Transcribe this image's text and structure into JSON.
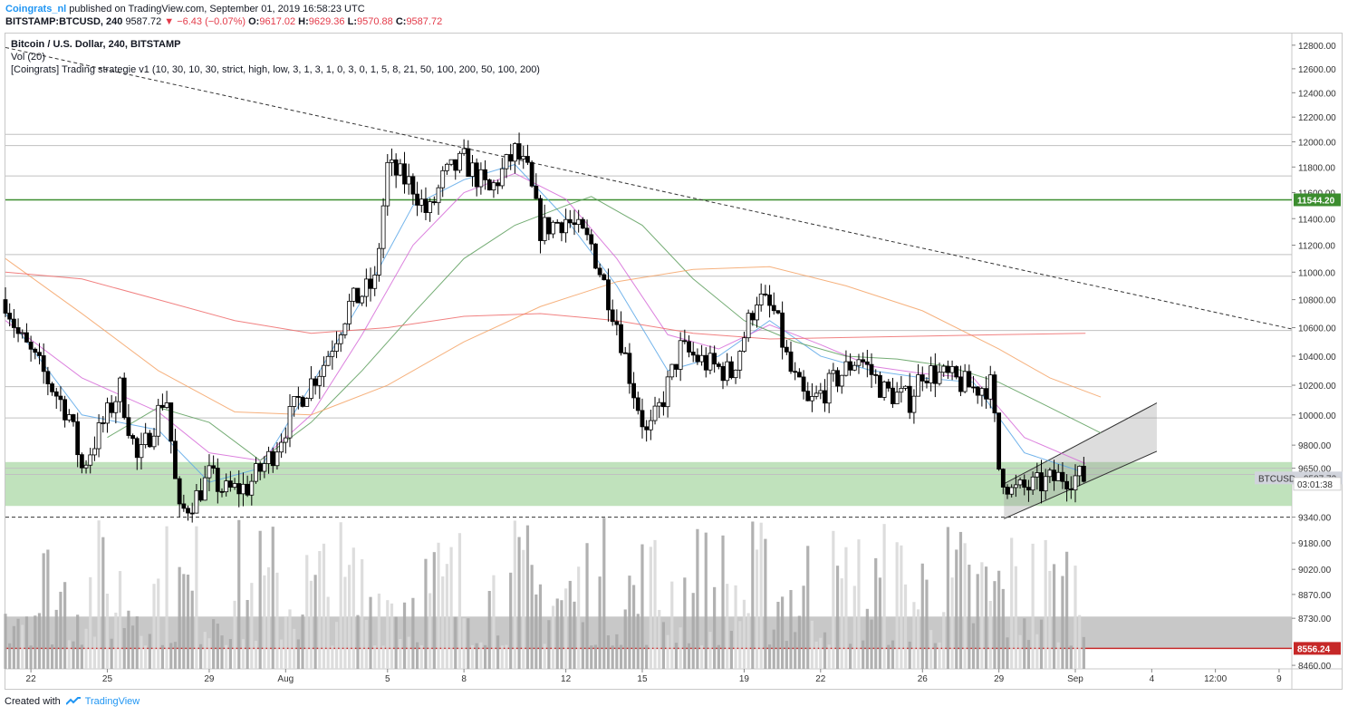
{
  "header": {
    "author": "Coingrats_nl",
    "published_text": "published on TradingView.com, September 01, 2019 16:58:23 UTC",
    "ticker": "BITSTAMP:BTCUSD, 240",
    "last": "9587.72",
    "change": "▼ −6.43 (−0.07%)",
    "o_label": "O:",
    "o": "9617.02",
    "h_label": "H:",
    "h": "9629.36",
    "l_label": "L:",
    "l": "9570.88",
    "c_label": "C:",
    "c": "9587.72"
  },
  "legend": {
    "title": "Bitcoin / U.S. Dollar, 240, BITSTAMP",
    "volume": "Vol (20)",
    "indicator": "[Coingrats] Trading strategie v1 (10, 30, 10, 30, strict, high, low, 3, 1, 3, 1, 0, 3, 0, 1, 5, 8, 21, 50, 100, 200, 50, 100, 200)"
  },
  "footer": {
    "created_with": "Created with",
    "brand": "TradingView"
  },
  "colors": {
    "up": "#ffffff",
    "down": "#000000",
    "zone_green": "#a5d6a0",
    "line_green": "#3c8d2f",
    "red_level": "#c62828",
    "ema_blue": "#5aa7e8",
    "ema_pink": "#d66bd8",
    "ema_green": "#5c9e5c",
    "ema_orange": "#f4a366",
    "ema_red": "#ef6b6b"
  },
  "chart_data": {
    "type": "candlestick",
    "symbol": "BTCUSD",
    "interval": "240",
    "y_scale": "log",
    "ylim": [
      8440,
      12900
    ],
    "y_ticks": [
      12800,
      12600,
      12400,
      12200,
      12000,
      11800,
      11600,
      11400,
      11200,
      11000,
      10800,
      10600,
      10400,
      10200,
      10000,
      9800,
      9650,
      9340,
      9180,
      9020,
      8870,
      8730,
      8460
    ],
    "y_tick_labels": [
      "12800.00",
      "12600.00",
      "12400.00",
      "12200.00",
      "12000.00",
      "11800.00",
      "11600.00",
      "11400.00",
      "11200.00",
      "11000.00",
      "10800.00",
      "10600.00",
      "10400.00",
      "10200.00",
      "10000.00",
      "9800.00",
      "9650.00",
      "9340.00",
      "9180.00",
      "9020.00",
      "8870.00",
      "8730.00",
      "8460.00"
    ],
    "x_labels": [
      "22",
      "25",
      "29",
      "Aug",
      "5",
      "8",
      "12",
      "15",
      "19",
      "22",
      "26",
      "29",
      "Sep",
      "4",
      "12:00",
      "9"
    ],
    "x_label_days": [
      22,
      25,
      29,
      32,
      36,
      39,
      43,
      46,
      50,
      53,
      57,
      60,
      63,
      66,
      68.5,
      71
    ],
    "x_start_day": 21.0,
    "x_end_day": 71.5,
    "badges": [
      {
        "label": "11544.20",
        "price": 11544.2,
        "color": "#3c8d2f"
      },
      {
        "label": "BTCUSD",
        "value": "9587.72",
        "price": 9587.72,
        "color": "#d1d4dc"
      },
      {
        "label": "03:01:38",
        "price": 9550,
        "color": "#ffffff"
      },
      {
        "label": "8556.24",
        "price": 8556.24,
        "color": "#c62828"
      }
    ],
    "levels": {
      "green_resistance": 11544.2,
      "dashed_support": 9340,
      "red_support": 8556.24,
      "horizontal_lines": [
        12060,
        11970,
        11730,
        11130,
        10970,
        10580,
        10190,
        9980,
        9650,
        9610
      ]
    },
    "zones": [
      {
        "from": 9410,
        "to": 9690,
        "color": "green"
      },
      {
        "from": 8560,
        "to": 8740,
        "color": "gray"
      }
    ],
    "trendline": {
      "from": {
        "day": 21.0,
        "price": 12780
      },
      "to": {
        "day": 71.5,
        "price": 10590
      }
    },
    "channel": {
      "upper": [
        {
          "day": 60.2,
          "price": 9550
        },
        {
          "day": 66.2,
          "price": 10080
        }
      ],
      "lower": [
        {
          "day": 60.2,
          "price": 9330
        },
        {
          "day": 66.2,
          "price": 9760
        }
      ]
    },
    "anchors": [
      {
        "day": 21.0,
        "price": 10800
      },
      {
        "day": 21.5,
        "price": 10550
      },
      {
        "day": 22.5,
        "price": 10280
      },
      {
        "day": 23.5,
        "price": 10000
      },
      {
        "day": 24.0,
        "price": 9650
      },
      {
        "day": 24.8,
        "price": 9930
      },
      {
        "day": 25.5,
        "price": 10180
      },
      {
        "day": 26.2,
        "price": 9680
      },
      {
        "day": 27.0,
        "price": 10020
      },
      {
        "day": 27.3,
        "price": 10160
      },
      {
        "day": 27.8,
        "price": 9350
      },
      {
        "day": 28.5,
        "price": 9470
      },
      {
        "day": 29.0,
        "price": 9600
      },
      {
        "day": 29.6,
        "price": 9500
      },
      {
        "day": 30.5,
        "price": 9530
      },
      {
        "day": 31.5,
        "price": 9750
      },
      {
        "day": 32.5,
        "price": 10100
      },
      {
        "day": 33.5,
        "price": 10350
      },
      {
        "day": 34.5,
        "price": 10760
      },
      {
        "day": 35.5,
        "price": 10920
      },
      {
        "day": 36.0,
        "price": 11800
      },
      {
        "day": 37.0,
        "price": 11650
      },
      {
        "day": 37.6,
        "price": 11420
      },
      {
        "day": 38.2,
        "price": 11720
      },
      {
        "day": 39.0,
        "price": 11850
      },
      {
        "day": 40.0,
        "price": 11600
      },
      {
        "day": 41.0,
        "price": 11920
      },
      {
        "day": 41.5,
        "price": 11750
      },
      {
        "day": 42.0,
        "price": 11320
      },
      {
        "day": 43.0,
        "price": 11400
      },
      {
        "day": 44.0,
        "price": 11200
      },
      {
        "day": 45.0,
        "price": 10640
      },
      {
        "day": 45.6,
        "price": 10200
      },
      {
        "day": 46.2,
        "price": 9850
      },
      {
        "day": 46.8,
        "price": 10100
      },
      {
        "day": 47.5,
        "price": 10450
      },
      {
        "day": 48.5,
        "price": 10350
      },
      {
        "day": 49.5,
        "price": 10280
      },
      {
        "day": 50.5,
        "price": 10820
      },
      {
        "day": 51.2,
        "price": 10700
      },
      {
        "day": 51.8,
        "price": 10300
      },
      {
        "day": 52.5,
        "price": 10060
      },
      {
        "day": 53.5,
        "price": 10220
      },
      {
        "day": 54.5,
        "price": 10400
      },
      {
        "day": 55.5,
        "price": 10160
      },
      {
        "day": 56.5,
        "price": 10100
      },
      {
        "day": 57.0,
        "price": 10300
      },
      {
        "day": 58.0,
        "price": 10250
      },
      {
        "day": 59.0,
        "price": 10180
      },
      {
        "day": 59.7,
        "price": 10200
      },
      {
        "day": 60.0,
        "price": 9650
      },
      {
        "day": 60.5,
        "price": 9500
      },
      {
        "day": 61.5,
        "price": 9540
      },
      {
        "day": 62.5,
        "price": 9600
      },
      {
        "day": 63.4,
        "price": 9588
      }
    ],
    "emas": [
      {
        "color": "#5aa7e8",
        "points": [
          {
            "day": 21,
            "price": 10700
          },
          {
            "day": 24,
            "price": 10000
          },
          {
            "day": 27,
            "price": 9900
          },
          {
            "day": 29,
            "price": 9560
          },
          {
            "day": 31,
            "price": 9650
          },
          {
            "day": 33,
            "price": 10200
          },
          {
            "day": 35,
            "price": 10800
          },
          {
            "day": 37,
            "price": 11500
          },
          {
            "day": 39,
            "price": 11700
          },
          {
            "day": 41,
            "price": 11820
          },
          {
            "day": 43,
            "price": 11400
          },
          {
            "day": 45,
            "price": 10900
          },
          {
            "day": 47,
            "price": 10300
          },
          {
            "day": 49,
            "price": 10400
          },
          {
            "day": 51,
            "price": 10650
          },
          {
            "day": 53,
            "price": 10400
          },
          {
            "day": 55,
            "price": 10300
          },
          {
            "day": 57,
            "price": 10250
          },
          {
            "day": 59,
            "price": 10220
          },
          {
            "day": 61,
            "price": 9750
          },
          {
            "day": 63.4,
            "price": 9620
          }
        ]
      },
      {
        "color": "#d66bd8",
        "points": [
          {
            "day": 21,
            "price": 10650
          },
          {
            "day": 24,
            "price": 10250
          },
          {
            "day": 27,
            "price": 10020
          },
          {
            "day": 29,
            "price": 9750
          },
          {
            "day": 31,
            "price": 9700
          },
          {
            "day": 33,
            "price": 10000
          },
          {
            "day": 35,
            "price": 10550
          },
          {
            "day": 37,
            "price": 11200
          },
          {
            "day": 39,
            "price": 11600
          },
          {
            "day": 41,
            "price": 11750
          },
          {
            "day": 43,
            "price": 11550
          },
          {
            "day": 45,
            "price": 11100
          },
          {
            "day": 47,
            "price": 10550
          },
          {
            "day": 49,
            "price": 10450
          },
          {
            "day": 51,
            "price": 10620
          },
          {
            "day": 53,
            "price": 10480
          },
          {
            "day": 55,
            "price": 10330
          },
          {
            "day": 57,
            "price": 10280
          },
          {
            "day": 59,
            "price": 10250
          },
          {
            "day": 61,
            "price": 9850
          },
          {
            "day": 63.4,
            "price": 9680
          }
        ]
      },
      {
        "color": "#5c9e5c",
        "points": [
          {
            "day": 25,
            "price": 9850
          },
          {
            "day": 27,
            "price": 10050
          },
          {
            "day": 29,
            "price": 9950
          },
          {
            "day": 31,
            "price": 9700
          },
          {
            "day": 33,
            "price": 9950
          },
          {
            "day": 35,
            "price": 10300
          },
          {
            "day": 37,
            "price": 10700
          },
          {
            "day": 39,
            "price": 11100
          },
          {
            "day": 41,
            "price": 11350
          },
          {
            "day": 43,
            "price": 11500
          },
          {
            "day": 44,
            "price": 11570
          },
          {
            "day": 46,
            "price": 11350
          },
          {
            "day": 48,
            "price": 10950
          },
          {
            "day": 50,
            "price": 10650
          },
          {
            "day": 52,
            "price": 10500
          },
          {
            "day": 54,
            "price": 10400
          },
          {
            "day": 56,
            "price": 10380
          },
          {
            "day": 58,
            "price": 10330
          },
          {
            "day": 60,
            "price": 10220
          },
          {
            "day": 62,
            "price": 10050
          },
          {
            "day": 64,
            "price": 9880
          }
        ]
      },
      {
        "color": "#f4a366",
        "points": [
          {
            "day": 21,
            "price": 11100
          },
          {
            "day": 24,
            "price": 10700
          },
          {
            "day": 27,
            "price": 10300
          },
          {
            "day": 30,
            "price": 10020
          },
          {
            "day": 33,
            "price": 10000
          },
          {
            "day": 36,
            "price": 10200
          },
          {
            "day": 39,
            "price": 10500
          },
          {
            "day": 42,
            "price": 10750
          },
          {
            "day": 45,
            "price": 10930
          },
          {
            "day": 48,
            "price": 11020
          },
          {
            "day": 51,
            "price": 11040
          },
          {
            "day": 54,
            "price": 10900
          },
          {
            "day": 57,
            "price": 10720
          },
          {
            "day": 60,
            "price": 10450
          },
          {
            "day": 62,
            "price": 10250
          },
          {
            "day": 64,
            "price": 10120
          }
        ]
      },
      {
        "color": "#ef6b6b",
        "points": [
          {
            "day": 21,
            "price": 11000
          },
          {
            "day": 24,
            "price": 10950
          },
          {
            "day": 27,
            "price": 10800
          },
          {
            "day": 30,
            "price": 10650
          },
          {
            "day": 33,
            "price": 10560
          },
          {
            "day": 36,
            "price": 10600
          },
          {
            "day": 39,
            "price": 10680
          },
          {
            "day": 42,
            "price": 10700
          },
          {
            "day": 45,
            "price": 10650
          },
          {
            "day": 48,
            "price": 10560
          },
          {
            "day": 51,
            "price": 10520
          },
          {
            "day": 54,
            "price": 10530
          },
          {
            "day": 57,
            "price": 10540
          },
          {
            "day": 60,
            "price": 10550
          },
          {
            "day": 63.4,
            "price": 10560
          }
        ]
      }
    ],
    "volume": {
      "panel_bottom_price": 8440,
      "max_price_height": 9360
    }
  }
}
